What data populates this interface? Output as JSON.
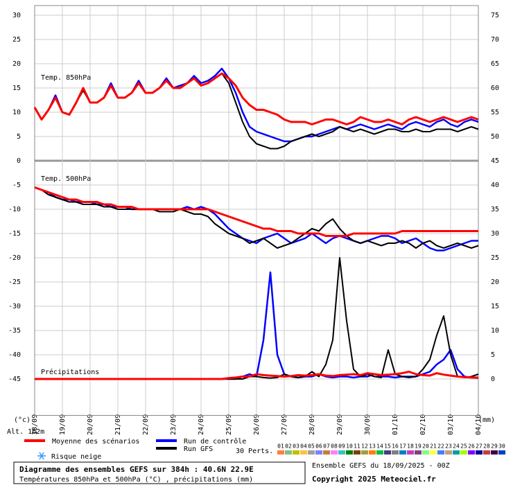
{
  "chart_data": {
    "type": "line",
    "annotations": [
      "Temp. 850hPa",
      "Temp. 500hPa",
      "Précipitations",
      "(°c)",
      "(mm)",
      "Alt. 162m"
    ],
    "x": [
      0,
      6,
      12,
      18,
      24,
      30,
      36,
      42,
      48,
      54,
      60,
      66,
      72,
      78,
      84,
      90,
      96,
      102,
      108,
      114,
      120,
      126,
      132,
      138,
      144,
      150,
      156,
      162,
      168,
      174,
      180,
      186,
      192,
      198,
      204,
      210,
      216,
      222,
      228,
      234,
      240,
      246,
      252,
      258,
      264,
      270,
      276,
      282,
      288,
      294,
      300,
      306,
      312,
      318,
      324,
      330,
      336,
      342,
      348,
      354,
      360,
      366,
      372,
      378,
      384
    ],
    "xlim": [
      0,
      384
    ],
    "xticks": [
      {
        "value": 0,
        "label": "18/09"
      },
      {
        "value": 24,
        "label": "19/09"
      },
      {
        "value": 48,
        "label": "20/09"
      },
      {
        "value": 72,
        "label": "21/09"
      },
      {
        "value": 96,
        "label": "22/09"
      },
      {
        "value": 120,
        "label": "23/09"
      },
      {
        "value": 144,
        "label": "24/09"
      },
      {
        "value": 168,
        "label": "25/09"
      },
      {
        "value": 192,
        "label": "26/09"
      },
      {
        "value": 216,
        "label": "27/09"
      },
      {
        "value": 240,
        "label": "28/09"
      },
      {
        "value": 264,
        "label": "29/09"
      },
      {
        "value": 288,
        "label": "30/09"
      },
      {
        "value": 312,
        "label": "01/10"
      },
      {
        "value": 336,
        "label": "02/10"
      },
      {
        "value": 360,
        "label": "03/10"
      },
      {
        "value": 384,
        "label": "04/10"
      }
    ],
    "ylim": [
      -52.5,
      32
    ],
    "yticks": [
      30,
      25,
      20,
      15,
      10,
      5,
      0,
      -5,
      -10,
      -15,
      -20,
      -25,
      -30,
      -35,
      -40,
      -45
    ],
    "y2lim": [
      -7.5,
      77
    ],
    "y2ticks": [
      75,
      70,
      65,
      60,
      55,
      50,
      45,
      40,
      35,
      30,
      25,
      20,
      15,
      10,
      5,
      0
    ],
    "precip_axis": "y2",
    "grid": true,
    "series": [
      {
        "name": "Moyenne des scénarios",
        "color": "#ff0000",
        "temp_850": [
          11,
          8.5,
          10.5,
          13,
          10,
          9.5,
          12,
          15,
          12,
          12,
          13,
          15.5,
          13,
          13,
          14,
          16,
          14,
          14,
          15,
          16.5,
          15,
          15,
          16,
          17,
          15.5,
          16,
          17,
          18,
          17,
          15.5,
          13,
          11.5,
          10.5,
          10.5,
          10,
          9.5,
          8.5,
          8,
          8,
          8,
          7.5,
          8,
          8.5,
          8.5,
          8,
          7.5,
          8,
          9,
          8.5,
          8,
          8,
          8.5,
          8,
          7.5,
          8.5,
          9,
          8.5,
          8,
          8.5,
          9,
          8.5,
          8,
          8.5,
          9,
          8.5
        ],
        "temp_500": [
          -5.5,
          -6,
          -6.5,
          -7,
          -7.5,
          -8,
          -8,
          -8.5,
          -8.5,
          -8.5,
          -9,
          -9,
          -9.5,
          -9.5,
          -9.5,
          -10,
          -10,
          -10,
          -10,
          -10,
          -10,
          -10,
          -10,
          -10,
          -10,
          -10,
          -10.5,
          -11,
          -11.5,
          -12,
          -12.5,
          -13,
          -13.5,
          -14,
          -14,
          -14.5,
          -14.5,
          -14.5,
          -15,
          -15,
          -15,
          -15,
          -15.5,
          -15.5,
          -15.5,
          -15.5,
          -15,
          -15,
          -15,
          -15,
          -15,
          -15,
          -15,
          -14.5,
          -14.5,
          -14.5,
          -14.5,
          -14.5,
          -14.5,
          -14.5,
          -14.5,
          -14.5,
          -14.5,
          -14.5,
          -14.5
        ],
        "precip": [
          0,
          0,
          0,
          0,
          0,
          0,
          0,
          0,
          0,
          0,
          0,
          0,
          0,
          0,
          0,
          0,
          0,
          0,
          0,
          0,
          0,
          0,
          0,
          0,
          0,
          0,
          0,
          0,
          0.2,
          0.3,
          0.5,
          0.5,
          1,
          0.8,
          0.7,
          0.6,
          0.5,
          0.6,
          0.8,
          0.7,
          0.8,
          1,
          0.7,
          0.6,
          0.8,
          0.9,
          1,
          0.8,
          1.2,
          1,
          0.8,
          0.9,
          1,
          1.2,
          1.5,
          1,
          0.8,
          0.7,
          1.2,
          0.9,
          0.7,
          0.5,
          0.4,
          0.3,
          0.3
        ],
        "width": 3
      },
      {
        "name": "Run de contrôle",
        "color": "#0000ff",
        "temp_850": [
          11,
          8.5,
          10.5,
          13.5,
          10,
          9.5,
          12,
          15,
          12,
          12,
          13,
          16,
          13,
          13,
          14,
          16.5,
          14,
          14,
          15,
          17,
          15,
          15.5,
          16,
          17.5,
          16,
          16.5,
          17.5,
          19,
          17,
          14,
          10,
          7,
          6,
          5.5,
          5,
          4.5,
          4,
          4,
          4.5,
          5,
          5,
          5.5,
          6,
          6.5,
          7,
          6.5,
          7,
          7.5,
          7,
          6.5,
          7,
          7.5,
          7,
          6.5,
          7.5,
          8,
          7.5,
          7,
          8,
          8.5,
          7.5,
          7,
          8,
          8.5,
          8
        ],
        "temp_500": [
          -5.5,
          -6,
          -6.5,
          -7.5,
          -8,
          -8,
          -8.5,
          -8.5,
          -8.5,
          -9,
          -9,
          -9.5,
          -9.5,
          -9.5,
          -10,
          -10,
          -10,
          -10,
          -10,
          -10,
          -10,
          -10,
          -9.5,
          -10,
          -9.5,
          -10,
          -11,
          -12.5,
          -14,
          -15,
          -16,
          -16.5,
          -17,
          -16,
          -15.5,
          -15,
          -16,
          -17,
          -16.5,
          -16,
          -15,
          -16,
          -17,
          -16,
          -15.5,
          -16,
          -16.5,
          -17,
          -16.5,
          -16,
          -15.5,
          -15.5,
          -16,
          -17,
          -16.5,
          -16,
          -17,
          -18,
          -18.5,
          -18.5,
          -18,
          -17.5,
          -17,
          -16.5,
          -16.5
        ],
        "precip": [
          0,
          0,
          0,
          0,
          0,
          0,
          0,
          0,
          0,
          0,
          0,
          0,
          0,
          0,
          0,
          0,
          0,
          0,
          0,
          0,
          0,
          0,
          0,
          0,
          0,
          0,
          0,
          0,
          0,
          0,
          0.5,
          1,
          0.5,
          8,
          22,
          5,
          1,
          0.5,
          0.3,
          0.5,
          0.5,
          1,
          0.5,
          0.3,
          0.5,
          0.5,
          0.3,
          0.5,
          0.5,
          1,
          0.5,
          0.5,
          0.3,
          0.5,
          0.5,
          0.5,
          1,
          1.5,
          3,
          4,
          6,
          2,
          0.5,
          0.3,
          0.2
        ],
        "width": 2.5
      },
      {
        "name": "Run GFS",
        "color": "#000000",
        "temp_850": [
          11,
          8.5,
          10.5,
          13,
          10,
          9.5,
          12,
          14.5,
          12,
          12,
          13,
          15.5,
          13,
          13,
          14,
          16,
          14,
          14,
          15,
          16.5,
          15,
          15,
          16,
          17,
          15.5,
          16,
          17,
          18,
          16,
          12,
          8,
          5,
          3.5,
          3,
          2.5,
          2.5,
          3,
          4,
          4.5,
          5,
          5.5,
          5,
          5.5,
          6,
          7,
          6.5,
          6,
          6.5,
          6,
          5.5,
          6,
          6.5,
          6.5,
          6,
          6,
          6.5,
          6,
          6,
          6.5,
          6.5,
          6.5,
          6,
          6.5,
          7,
          6.5
        ],
        "temp_500": [
          -5.5,
          -6,
          -7,
          -7.5,
          -8,
          -8.5,
          -8.5,
          -9,
          -9,
          -9,
          -9.5,
          -9.5,
          -10,
          -10,
          -10,
          -10,
          -10,
          -10,
          -10.5,
          -10.5,
          -10.5,
          -10,
          -10.5,
          -11,
          -11,
          -11.5,
          -13,
          -14,
          -15,
          -15.5,
          -16,
          -17,
          -16.5,
          -16,
          -17,
          -18,
          -17.5,
          -17,
          -16,
          -15,
          -14,
          -14.5,
          -13,
          -12,
          -14,
          -15.5,
          -16.5,
          -17,
          -16.5,
          -17,
          -17.5,
          -17,
          -17,
          -16.5,
          -17,
          -18,
          -17,
          -16.5,
          -17.5,
          -18,
          -17.5,
          -17,
          -17.5,
          -18,
          -17.5
        ],
        "precip": [
          0,
          0,
          0,
          0,
          0,
          0,
          0,
          0,
          0,
          0,
          0,
          0,
          0,
          0,
          0,
          0,
          0,
          0,
          0,
          0,
          0,
          0,
          0,
          0,
          0,
          0,
          0,
          0,
          0,
          0,
          0,
          0.5,
          0.5,
          0.3,
          0.2,
          0.3,
          1,
          0.5,
          0.3,
          0.5,
          1.5,
          0.5,
          3,
          8,
          25,
          12,
          2,
          0.5,
          1,
          0.5,
          0.3,
          6,
          1,
          0.5,
          0.3,
          0.5,
          2,
          4,
          9,
          13,
          5,
          0.5,
          0.3,
          0.5,
          1
        ],
        "width": 2
      }
    ],
    "snow_risk": "Risque neige",
    "perturbations": {
      "label": "30 Perts.",
      "items": [
        {
          "name": "01",
          "color": "#ff8040"
        },
        {
          "name": "02",
          "color": "#80c080"
        },
        {
          "name": "03",
          "color": "#c0c000"
        },
        {
          "name": "04",
          "color": "#ffc040"
        },
        {
          "name": "05",
          "color": "#a0a0a0"
        },
        {
          "name": "06",
          "color": "#8080ff"
        },
        {
          "name": "07",
          "color": "#c08040"
        },
        {
          "name": "08",
          "color": "#ff80ff"
        },
        {
          "name": "09",
          "color": "#40c0c0"
        },
        {
          "name": "10",
          "color": "#008000"
        },
        {
          "name": "11",
          "color": "#804000"
        },
        {
          "name": "12",
          "color": "#a0a040"
        },
        {
          "name": "13",
          "color": "#ff8000"
        },
        {
          "name": "14",
          "color": "#00c040"
        },
        {
          "name": "15",
          "color": "#404080"
        },
        {
          "name": "16",
          "color": "#808080"
        },
        {
          "name": "17",
          "color": "#0080c0"
        },
        {
          "name": "18",
          "color": "#c040c0"
        },
        {
          "name": "19",
          "color": "#804080"
        },
        {
          "name": "20",
          "color": "#80ff80"
        },
        {
          "name": "21",
          "color": "#ffff40"
        },
        {
          "name": "22",
          "color": "#4080ff"
        },
        {
          "name": "23",
          "color": "#c0a080"
        },
        {
          "name": "24",
          "color": "#00a0a0"
        },
        {
          "name": "25",
          "color": "#a0ff00"
        },
        {
          "name": "26",
          "color": "#8000ff"
        },
        {
          "name": "27",
          "color": "#0000a0"
        },
        {
          "name": "28",
          "color": "#c04040"
        },
        {
          "name": "29",
          "color": "#400040"
        },
        {
          "name": "30",
          "color": "#0040c0"
        }
      ]
    },
    "footer": {
      "title": "Diagramme des ensembles GEFS sur 384h : 40.6N 22.9E",
      "subtitle": "Températures 850hPa et 500hPa (°C) , précipitations (mm)",
      "run": "Ensemble GEFS du 18/09/2025 - 00Z",
      "copyright": "Copyright 2025 Meteociel.fr"
    }
  }
}
